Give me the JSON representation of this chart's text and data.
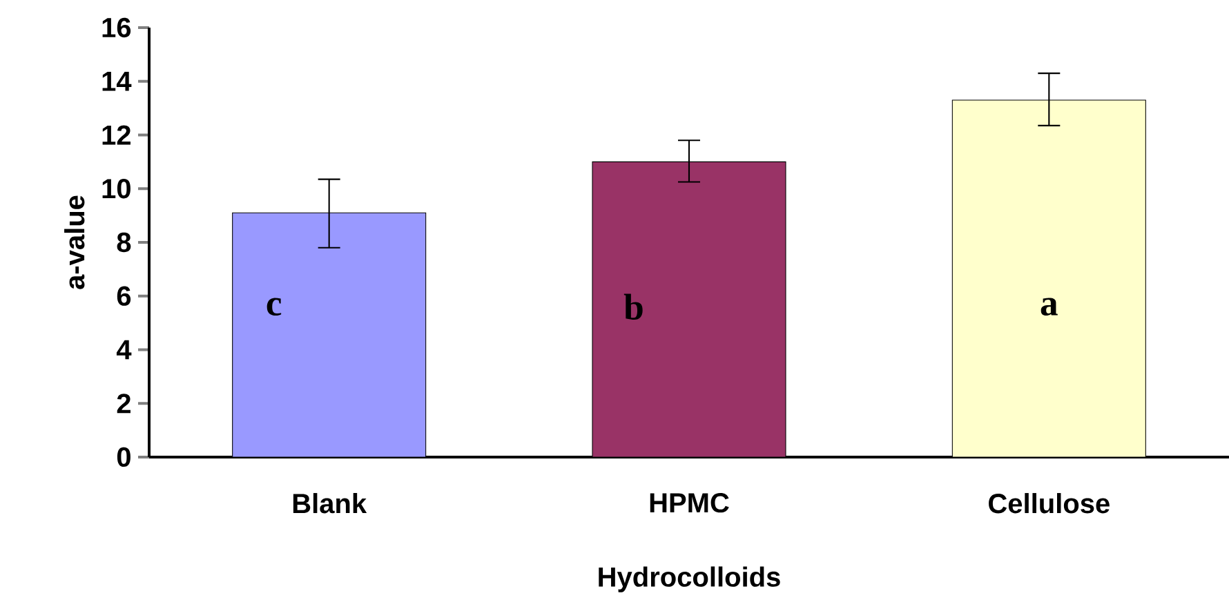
{
  "chart_data": {
    "type": "bar",
    "xlabel": "Hydrocolloids",
    "ylabel": "a-value",
    "categories": [
      "Blank",
      "HPMC",
      "Cellulose"
    ],
    "values": [
      9.1,
      11.0,
      13.3
    ],
    "colors": [
      "#9999ff",
      "#993366",
      "#ffffcc"
    ],
    "errors": [
      [
        7.8,
        10.35
      ],
      [
        10.25,
        11.8
      ],
      [
        12.35,
        14.3
      ]
    ],
    "ylim": [
      0,
      16
    ],
    "yticks": [
      0,
      2,
      4,
      6,
      8,
      10,
      12,
      14,
      16
    ],
    "annotations": [
      "c",
      "b",
      "a"
    ]
  }
}
